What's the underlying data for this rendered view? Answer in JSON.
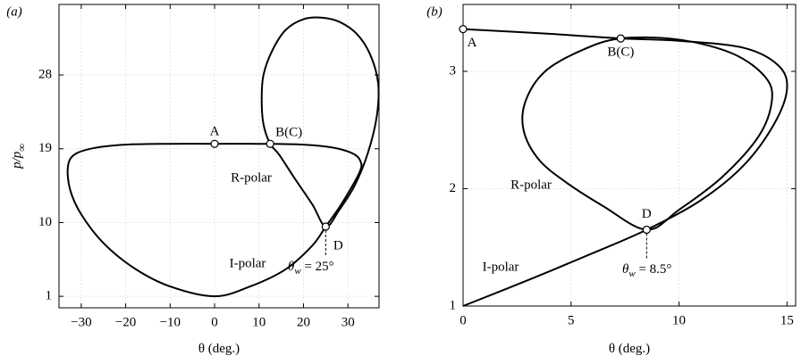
{
  "chart_data": [
    {
      "type": "line",
      "panel": "(a)",
      "x_label": "θ (deg.)",
      "y_label": [
        "p/p",
        "∞"
      ],
      "xlim": [
        -35,
        37
      ],
      "ylim": [
        -0.4,
        36.6
      ],
      "xticks": [
        {
          "value": -30,
          "label": "−30"
        },
        {
          "value": -20,
          "label": "−20"
        },
        {
          "value": -10,
          "label": "−10"
        },
        0,
        10,
        20,
        30
      ],
      "yticks": [
        1,
        10,
        19,
        28
      ],
      "grid": true,
      "series": [
        {
          "name": "I-polar",
          "color": "#000000",
          "x": [
            0,
            8,
            16,
            22,
            25,
            28,
            30.5,
            32.5,
            33,
            31.5,
            27,
            20,
            10,
            0,
            -10,
            -20,
            -27,
            -31.5,
            -33,
            -32.5,
            -30,
            -25,
            -18,
            -10,
            0
          ],
          "y": [
            1,
            2.2,
            4.3,
            7.2,
            9.5,
            11.8,
            14,
            16,
            17.2,
            18.3,
            19.1,
            19.5,
            19.6,
            19.6,
            19.6,
            19.5,
            19.1,
            18.3,
            16.8,
            14,
            11,
            7.5,
            4.4,
            2.2,
            1
          ]
        },
        {
          "name": "R-polar",
          "color": "#000000",
          "x": [
            25,
            22,
            18,
            14.5,
            12.5,
            11,
            10.6,
            11,
            13,
            16,
            20,
            24,
            28,
            32,
            35,
            36.8,
            36.5,
            34.5,
            31.5,
            28,
            25
          ],
          "y": [
            9.5,
            12.2,
            15.4,
            18.3,
            19.6,
            22,
            25,
            28,
            31,
            33.5,
            34.8,
            35,
            34.5,
            33,
            30.5,
            27,
            23,
            18.5,
            14.5,
            11.5,
            9.5
          ]
        }
      ],
      "points": [
        {
          "name": "A",
          "x": 0,
          "y": 19.6
        },
        {
          "name": "B(C)",
          "x": 12.5,
          "y": 19.6
        },
        {
          "name": "D",
          "x": 25,
          "y": 9.5
        }
      ],
      "wedge_label": [
        "θ",
        "w",
        " = 25°"
      ]
    },
    {
      "type": "line",
      "panel": "(b)",
      "x_label": "θ (deg.)",
      "xlim": [
        0,
        15.4
      ],
      "ylim": [
        1,
        3.57
      ],
      "xticks": [
        0,
        5,
        10,
        15
      ],
      "yticks": [
        1,
        2,
        3
      ],
      "grid": true,
      "series": [
        {
          "name": "I-polar",
          "color": "#000000",
          "x": [
            0,
            3,
            6,
            8.5,
            11,
            13,
            14.4,
            15,
            14.6,
            13,
            10,
            7.3,
            4,
            0
          ],
          "y": [
            1,
            1.22,
            1.45,
            1.65,
            1.9,
            2.2,
            2.55,
            2.85,
            3.05,
            3.2,
            3.26,
            3.28,
            3.32,
            3.36
          ]
        },
        {
          "name": "R-polar",
          "color": "#000000",
          "x": [
            8.5,
            6.5,
            4.8,
            3.5,
            2.8,
            2.9,
            3.8,
            5.5,
            7.3,
            10,
            12.5,
            14,
            14.3,
            13.7,
            12,
            10,
            8.5
          ],
          "y": [
            1.65,
            1.85,
            2.05,
            2.25,
            2.5,
            2.75,
            3.0,
            3.18,
            3.28,
            3.27,
            3.15,
            2.95,
            2.75,
            2.45,
            2.1,
            1.82,
            1.65
          ]
        }
      ],
      "points": [
        {
          "name": "A",
          "x": 0,
          "y": 3.36
        },
        {
          "name": "B(C)",
          "x": 7.3,
          "y": 3.28
        },
        {
          "name": "D",
          "x": 8.5,
          "y": 1.65
        }
      ],
      "wedge_label": [
        "θ",
        "w",
        " = 8.5°"
      ]
    }
  ]
}
